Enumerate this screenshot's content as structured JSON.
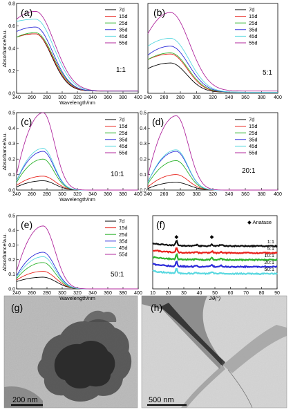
{
  "colors": {
    "7d": "#000000",
    "15d": "#e8231c",
    "25d": "#2db32d",
    "35d": "#2a2ad8",
    "45d": "#5ad8e0",
    "55d": "#b0289e",
    "xrd": [
      "#111111",
      "#e8231c",
      "#2db32d",
      "#2a2ad8",
      "#5ad8e0"
    ]
  },
  "chart_data": [
    {
      "id": "a",
      "type": "line",
      "panel_label": "(a)",
      "ratio": "1:1",
      "xlabel": "Wavelength/nm",
      "ylabel": "Absorbance/a.u.",
      "xlim": [
        240,
        400
      ],
      "xticks": [
        240,
        260,
        280,
        300,
        320,
        340,
        360,
        380,
        400
      ],
      "ylim": [
        0.0,
        0.8
      ],
      "yticks": [
        0.0,
        0.2,
        0.4,
        0.6,
        0.8
      ],
      "legend": [
        "7d",
        "15d",
        "25d",
        "35d",
        "45d",
        "55d"
      ],
      "peak_position": 265,
      "series": [
        {
          "name": "7d",
          "y240": 0.5,
          "peak": 0.53,
          "width": 30,
          "baseline": 0.02
        },
        {
          "name": "15d",
          "y240": 0.5,
          "peak": 0.53,
          "width": 31,
          "baseline": 0.02
        },
        {
          "name": "25d",
          "y240": 0.5,
          "peak": 0.54,
          "width": 32,
          "baseline": 0.02
        },
        {
          "name": "35d",
          "y240": 0.55,
          "peak": 0.59,
          "width": 32,
          "baseline": 0.02
        },
        {
          "name": "45d",
          "y240": 0.64,
          "peak": 0.66,
          "width": 34,
          "baseline": 0.02
        },
        {
          "name": "55d",
          "y240": 0.66,
          "peak": 0.73,
          "width": 35,
          "baseline": 0.02
        }
      ]
    },
    {
      "id": "b",
      "type": "line",
      "panel_label": "(b)",
      "ratio": "5:1",
      "xlabel": "",
      "ylabel": "",
      "xlim": [
        240,
        400
      ],
      "xticks": [
        240,
        260,
        280,
        300,
        320,
        340,
        360,
        380,
        400
      ],
      "ylim": [
        0.0,
        0.8
      ],
      "yticks": [],
      "legend": [
        "7d",
        "15d",
        "25d",
        "35d",
        "45d",
        "55d"
      ],
      "peak_position": 268,
      "series": [
        {
          "name": "7d",
          "y240": 0.22,
          "peak": 0.27,
          "width": 28,
          "baseline": 0.01
        },
        {
          "name": "15d",
          "y240": 0.3,
          "peak": 0.35,
          "width": 29,
          "baseline": 0.01
        },
        {
          "name": "25d",
          "y240": 0.3,
          "peak": 0.36,
          "width": 30,
          "baseline": 0.01
        },
        {
          "name": "35d",
          "y240": 0.34,
          "peak": 0.42,
          "width": 31,
          "baseline": 0.01
        },
        {
          "name": "45d",
          "y240": 0.42,
          "peak": 0.49,
          "width": 32,
          "baseline": 0.01
        },
        {
          "name": "55d",
          "y240": 0.53,
          "peak": 0.72,
          "width": 33,
          "baseline": 0.02
        }
      ]
    },
    {
      "id": "c",
      "type": "line",
      "panel_label": "(c)",
      "ratio": "10:1",
      "xlabel": "Wavelength/nm",
      "ylabel": "Absorbance/a.u.",
      "xlim": [
        240,
        400
      ],
      "xticks": [
        240,
        260,
        280,
        300,
        320,
        340,
        360,
        380,
        400
      ],
      "ylim": [
        0.0,
        0.5
      ],
      "yticks": [
        0.0,
        0.1,
        0.2,
        0.3,
        0.4,
        0.5
      ],
      "legend": [
        "7d",
        "15d",
        "25d",
        "35d",
        "45d",
        "55d"
      ],
      "peak_position": 275,
      "series": [
        {
          "name": "7d",
          "y240": 0.02,
          "peak": 0.06,
          "width": 22,
          "baseline": 0.0
        },
        {
          "name": "15d",
          "y240": 0.03,
          "peak": 0.09,
          "width": 22,
          "baseline": 0.0
        },
        {
          "name": "25d",
          "y240": 0.05,
          "peak": 0.2,
          "width": 20,
          "baseline": 0.0
        },
        {
          "name": "35d",
          "y240": 0.06,
          "peak": 0.25,
          "width": 20,
          "baseline": 0.0
        },
        {
          "name": "45d",
          "y240": 0.06,
          "peak": 0.27,
          "width": 20,
          "baseline": 0.0
        },
        {
          "name": "55d",
          "y240": 0.1,
          "peak": 0.5,
          "width": 21,
          "baseline": 0.0
        }
      ]
    },
    {
      "id": "d",
      "type": "line",
      "panel_label": "(d)",
      "ratio": "20:1",
      "xlabel": "",
      "ylabel": "",
      "xlim": [
        240,
        400
      ],
      "xticks": [
        240,
        260,
        280,
        300,
        320,
        340,
        360,
        380,
        400
      ],
      "ylim": [
        0.0,
        0.5
      ],
      "yticks": [
        0.0,
        0.1,
        0.2,
        0.3,
        0.4,
        0.5
      ],
      "legend": [
        "7d",
        "15d",
        "25d",
        "35d",
        "45d",
        "55d"
      ],
      "peak_position": 275,
      "series": [
        {
          "name": "7d",
          "y240": 0.01,
          "peak": 0.05,
          "width": 22,
          "baseline": 0.0
        },
        {
          "name": "15d",
          "y240": 0.02,
          "peak": 0.1,
          "width": 21,
          "baseline": 0.0
        },
        {
          "name": "25d",
          "y240": 0.04,
          "peak": 0.19,
          "width": 20,
          "baseline": 0.0
        },
        {
          "name": "35d",
          "y240": 0.05,
          "peak": 0.25,
          "width": 20,
          "baseline": 0.0
        },
        {
          "name": "45d",
          "y240": 0.05,
          "peak": 0.26,
          "width": 20,
          "baseline": 0.0
        },
        {
          "name": "55d",
          "y240": 0.09,
          "peak": 0.48,
          "width": 21,
          "baseline": 0.0
        }
      ]
    },
    {
      "id": "e",
      "type": "line",
      "panel_label": "(e)",
      "ratio": "50:1",
      "xlabel": "Wavelength/nm",
      "ylabel": "Absorbance/a.u.",
      "xlim": [
        240,
        400
      ],
      "xticks": [
        240,
        260,
        280,
        300,
        320,
        340,
        360,
        380,
        400
      ],
      "ylim": [
        0.0,
        0.5
      ],
      "yticks": [
        0.0,
        0.1,
        0.2,
        0.3,
        0.4,
        0.5
      ],
      "legend": [
        "7d",
        "15d",
        "25d",
        "35d",
        "45d",
        "55d"
      ],
      "peak_position": 275,
      "series": [
        {
          "name": "7d",
          "y240": 0.05,
          "peak": 0.08,
          "width": 24,
          "baseline": 0.0
        },
        {
          "name": "15d",
          "y240": 0.06,
          "peak": 0.12,
          "width": 23,
          "baseline": 0.0
        },
        {
          "name": "25d",
          "y240": 0.07,
          "peak": 0.18,
          "width": 22,
          "baseline": 0.0
        },
        {
          "name": "35d",
          "y240": 0.09,
          "peak": 0.25,
          "width": 22,
          "baseline": 0.0
        },
        {
          "name": "45d",
          "y240": 0.08,
          "peak": 0.22,
          "width": 22,
          "baseline": 0.0
        },
        {
          "name": "55d",
          "y240": 0.12,
          "peak": 0.43,
          "width": 22,
          "baseline": 0.0
        }
      ]
    },
    {
      "id": "f",
      "type": "line",
      "panel_label": "(f)",
      "xlabel": "2θ(°)",
      "ylabel": "",
      "xlim": [
        10,
        90
      ],
      "xticks": [
        10,
        20,
        30,
        40,
        50,
        60,
        70,
        80,
        90
      ],
      "legend_marker": "◆",
      "legend_label": "Anatase",
      "peak_marks_x": [
        25.3,
        48.0
      ],
      "series": [
        {
          "name": "1:1",
          "offset": 5.0
        },
        {
          "name": "5:1",
          "offset": 4.0
        },
        {
          "name": "10:1",
          "offset": 3.0
        },
        {
          "name": "20:1",
          "offset": 2.0
        },
        {
          "name": "50:1",
          "offset": 1.0
        }
      ]
    }
  ],
  "micrographs": [
    {
      "id": "g",
      "label": "(g)",
      "scale": "200 nm"
    },
    {
      "id": "h",
      "label": "(h)",
      "scale": "500 nm"
    }
  ]
}
